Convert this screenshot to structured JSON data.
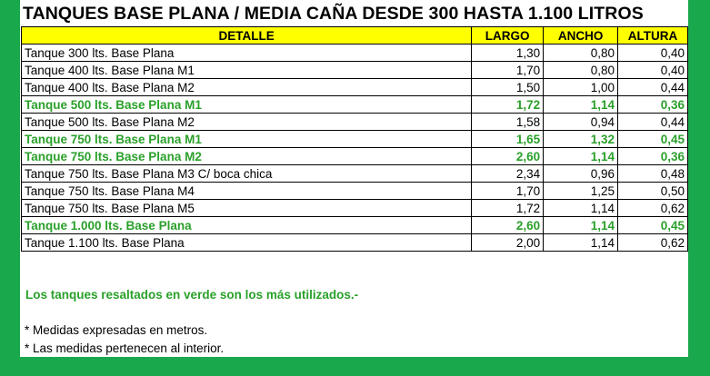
{
  "title": "TANQUES BASE PLANA / MEDIA CAÑA DESDE 300 HASTA 1.100 LITROS",
  "columns": [
    "DETALLE",
    "LARGO",
    "ANCHO",
    "ALTURA"
  ],
  "rows": [
    {
      "name": "Tanque 300 lts. Base Plana",
      "largo": "1,30",
      "ancho": "0,80",
      "altura": "0,40",
      "highlight": false
    },
    {
      "name": "Tanque 400 lts. Base Plana M1",
      "largo": "1,70",
      "ancho": "0,80",
      "altura": "0,40",
      "highlight": false
    },
    {
      "name": "Tanque 400 lts. Base Plana M2",
      "largo": "1,50",
      "ancho": "1,00",
      "altura": "0,44",
      "highlight": false
    },
    {
      "name": "Tanque 500 lts. Base Plana M1",
      "largo": "1,72",
      "ancho": "1,14",
      "altura": "0,36",
      "highlight": true
    },
    {
      "name": "Tanque 500 lts. Base Plana M2",
      "largo": "1,58",
      "ancho": "0,94",
      "altura": "0,44",
      "highlight": false
    },
    {
      "name": "Tanque 750 lts. Base Plana M1",
      "largo": "1,65",
      "ancho": "1,32",
      "altura": "0,45",
      "highlight": true
    },
    {
      "name": "Tanque 750 lts. Base Plana M2",
      "largo": "2,60",
      "ancho": "1,14",
      "altura": "0,36",
      "highlight": true
    },
    {
      "name": "Tanque 750 lts. Base Plana M3 C/ boca chica",
      "largo": "2,34",
      "ancho": "0,96",
      "altura": "0,48",
      "highlight": false
    },
    {
      "name": "Tanque 750 lts. Base Plana M4",
      "largo": "1,70",
      "ancho": "1,25",
      "altura": "0,50",
      "highlight": false
    },
    {
      "name": "Tanque 750 lts. Base Plana M5",
      "largo": "1,72",
      "ancho": "1,14",
      "altura": "0,62",
      "highlight": false
    },
    {
      "name": "Tanque 1.000 lts. Base Plana",
      "largo": "2,60",
      "ancho": "1,14",
      "altura": "0,45",
      "highlight": true
    },
    {
      "name": "Tanque 1.100 lts. Base Plana",
      "largo": "2,00",
      "ancho": "1,14",
      "altura": "0,62",
      "highlight": false
    }
  ],
  "notes": {
    "highlight_note": "Los tanques resaltados en verde son los más utilizados.-",
    "line1": "* Medidas expresadas en metros.",
    "line2": "* Las medidas pertenecen al interior."
  },
  "colors": {
    "frame": "#19a84c",
    "header_bg": "#ffff00",
    "highlight_text": "#2aa02a"
  }
}
